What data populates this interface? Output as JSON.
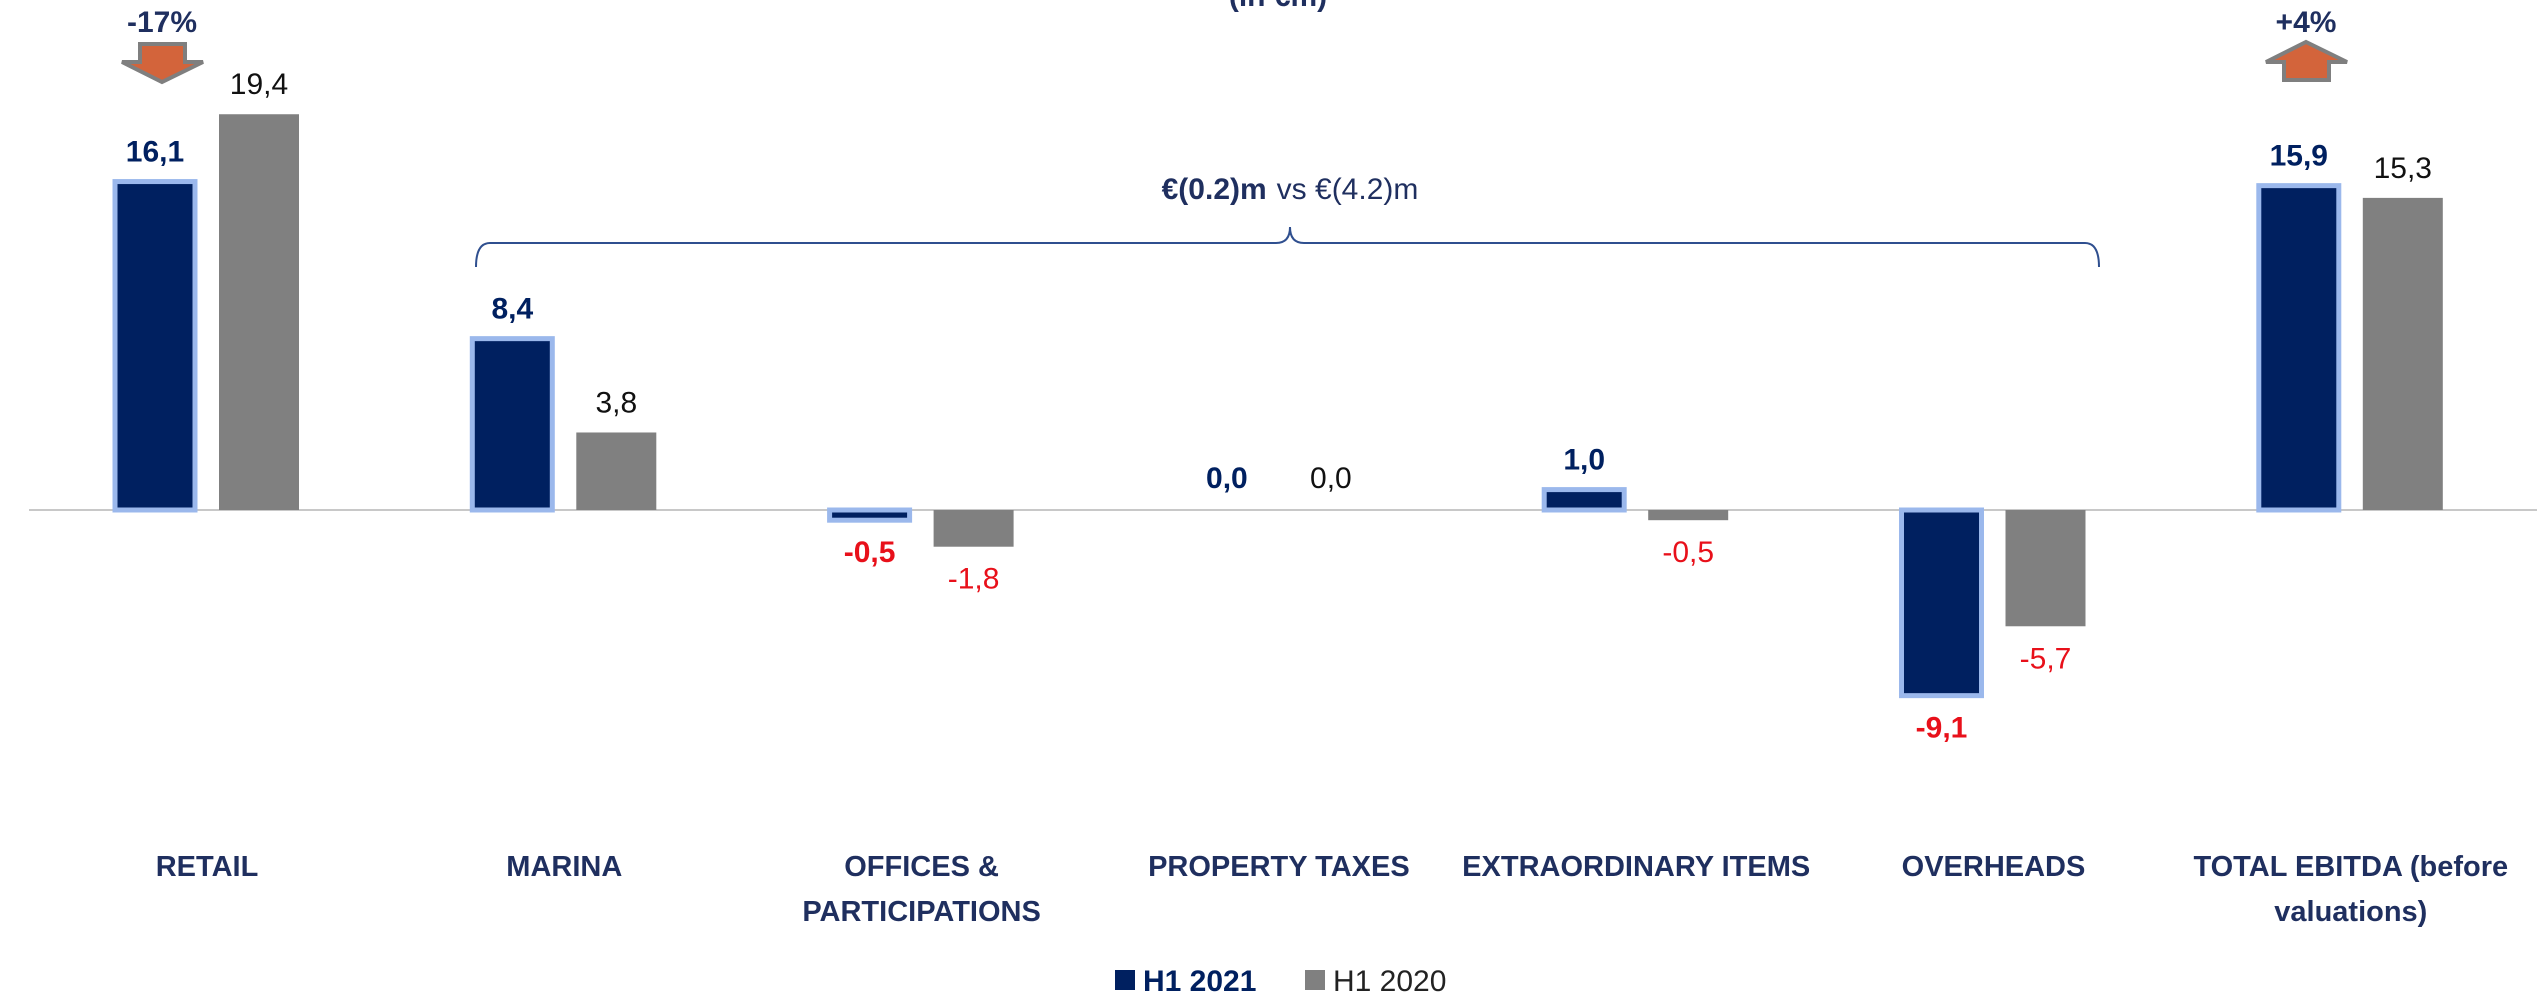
{
  "chart_data": {
    "type": "bar",
    "subtitle": "(in €m)",
    "categories": [
      "RETAIL",
      "MARINA",
      "OFFICES & PARTICIPATIONS",
      "PROPERTY TAXES",
      "EXTRAORDINARY ITEMS",
      "OVERHEADS",
      "TOTAL EBITDA (before valuations)"
    ],
    "series": [
      {
        "name": "H1 2021",
        "color": "#002060",
        "values": [
          16.1,
          8.4,
          -0.5,
          0.0,
          1.0,
          -9.1,
          15.9
        ],
        "value_labels": [
          "16,1",
          "8,4",
          "-0,5",
          "0,0",
          "1,0",
          "-9,1",
          "15,9"
        ]
      },
      {
        "name": "H1 2020",
        "color": "#808080",
        "values": [
          19.4,
          3.8,
          -1.8,
          0.0,
          -0.5,
          -5.7,
          15.3
        ],
        "value_labels": [
          "19,4",
          "3,8",
          "-1,8",
          "0,0",
          "-0,5",
          "-5,7",
          "15,3"
        ]
      }
    ],
    "negative_label_color": "#e8101a",
    "annotations": [
      {
        "text": "-17%",
        "direction": "down"
      },
      {
        "text": "+4%",
        "direction": "up"
      },
      {
        "bold": "€(0.2)m",
        "text": "vs €(4.2)m"
      }
    ]
  }
}
